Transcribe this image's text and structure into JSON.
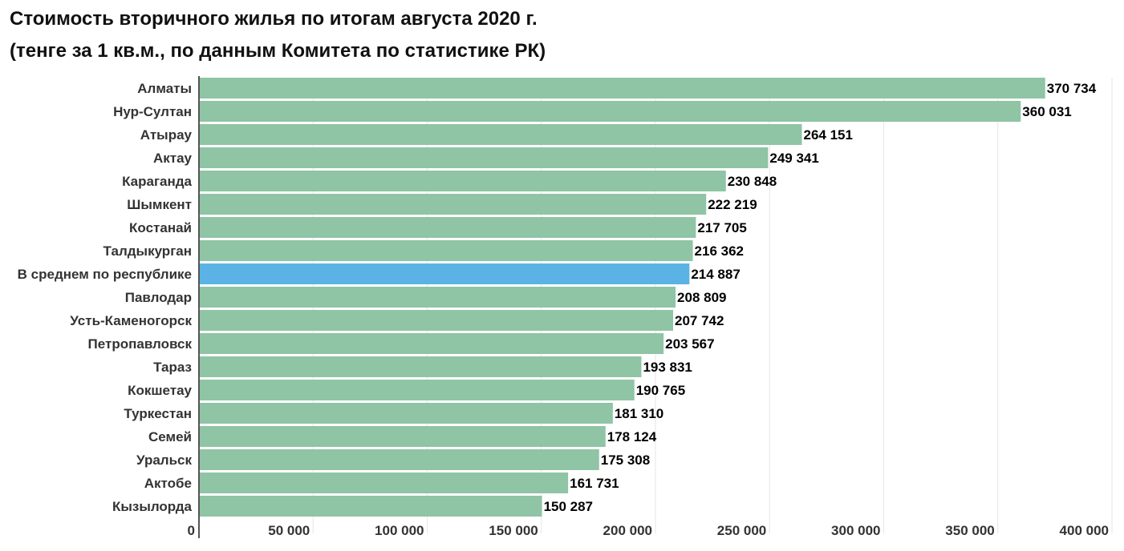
{
  "title": "Стоимость вторичного жилья по итогам августа 2020 г.",
  "subtitle": "(тенге за 1 кв.м., по данным Комитета по статистике РК)",
  "colors": {
    "bar": "#8fc4a5",
    "highlight": "#5ab3e4",
    "grid": "#e6e6e6",
    "axis": "#555555"
  },
  "chart_data": {
    "type": "bar",
    "orientation": "horizontal",
    "title": "Стоимость вторичного жилья по итогам августа 2020 г.",
    "subtitle": "(тенге за 1 кв.м., по данным Комитета по статистике РК)",
    "categories": [
      "Алматы",
      "Нур-Султан",
      "Атырау",
      "Актау",
      "Караганда",
      "Шымкент",
      "Костанай",
      "Талдыкурган",
      "В среднем по республике",
      "Павлодар",
      "Усть-Каменогорск",
      "Петропавловск",
      "Тараз",
      "Кокшетау",
      "Туркестан",
      "Семей",
      "Уральск",
      "Актобе",
      "Кызылорда"
    ],
    "values": [
      370734,
      360031,
      264151,
      249341,
      230848,
      222219,
      217705,
      216362,
      214887,
      208809,
      207742,
      203567,
      193831,
      190765,
      181310,
      178124,
      175308,
      161731,
      150287
    ],
    "value_labels": [
      "370 734",
      "360 031",
      "264 151",
      "249 341",
      "230 848",
      "222 219",
      "217 705",
      "216 362",
      "214 887",
      "208 809",
      "207 742",
      "203 567",
      "193 831",
      "190 765",
      "181 310",
      "178 124",
      "175 308",
      "161 731",
      "150 287"
    ],
    "highlight_category": "В среднем по республике",
    "xlim": [
      0,
      400000
    ],
    "xticks": [
      0,
      50000,
      100000,
      150000,
      200000,
      250000,
      300000,
      350000,
      400000
    ],
    "xtick_labels": [
      "0",
      "50 000",
      "100 000",
      "150 000",
      "200 000",
      "250 000",
      "300 000",
      "350 000",
      "400 000"
    ],
    "grid": true,
    "legend": "none"
  }
}
